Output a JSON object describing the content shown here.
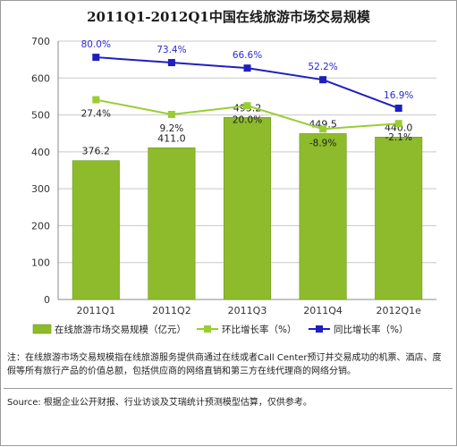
{
  "chart_data": {
    "type": "bar",
    "title": "2011Q1-2012Q1中国在线旅游市场交易规模",
    "categories": [
      "2011Q1",
      "2011Q2",
      "2011Q3",
      "2011Q4",
      "2012Q1e"
    ],
    "ylim": [
      0,
      700
    ],
    "yticks": [
      0,
      100,
      200,
      300,
      400,
      500,
      600,
      700
    ],
    "grid": true,
    "legend_position": "bottom",
    "series": [
      {
        "name": "在线旅游市场交易规模（亿元）",
        "kind": "bar",
        "color": "#8dbb2b",
        "values": [
          376.2,
          411.0,
          493.2,
          449.5,
          440.0
        ],
        "labels": [
          "376.2",
          "411.0",
          "493.2",
          "449.5",
          "440.0"
        ]
      },
      {
        "name": "环比增长率（%）",
        "kind": "line",
        "color": "#9acd32",
        "values": [
          27.4,
          9.2,
          20.0,
          -8.9,
          -2.1
        ],
        "labels": [
          "27.4%",
          "9.2%",
          "20.0%",
          "-8.9%",
          "-2.1%"
        ]
      },
      {
        "name": "同比增长率（%）",
        "kind": "line",
        "color": "#1f1fbf",
        "values": [
          80.0,
          73.4,
          66.6,
          52.2,
          16.9
        ],
        "labels": [
          "80.0%",
          "73.4%",
          "66.6%",
          "52.2%",
          "16.9%"
        ]
      }
    ]
  },
  "note": "注：在线旅游市场交易规模指在线旅游服务提供商通过在线或者Call Center预订并交易成功的机票、酒店、度假等所有旅行产品的价值总额，包括供应商的网络直销和第三方在线代理商的网络分销。",
  "source": "Source: 根据企业公开财报、行业访谈及艾瑞统计预测模型估算，仅供参考。"
}
